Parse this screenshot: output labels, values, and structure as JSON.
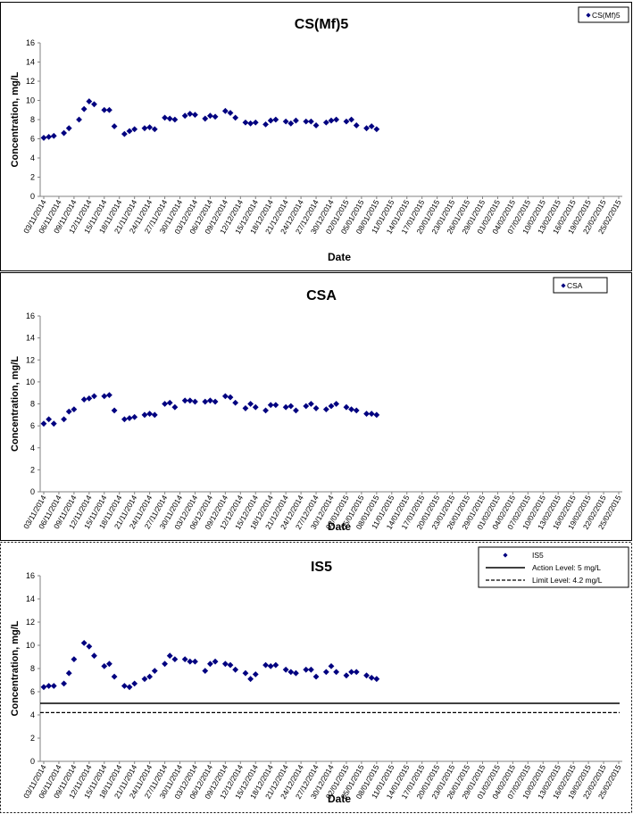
{
  "dates": [
    "03/11/2014",
    "06/11/2014",
    "09/11/2014",
    "12/11/2014",
    "15/11/2014",
    "18/11/2014",
    "21/11/2014",
    "24/11/2014",
    "27/11/2014",
    "30/11/2014",
    "03/12/2014",
    "06/12/2014",
    "09/12/2014",
    "12/12/2014",
    "15/12/2014",
    "18/12/2014",
    "21/12/2014",
    "24/12/2014",
    "27/12/2014",
    "30/12/2014",
    "02/01/2015",
    "05/01/2015",
    "08/01/2015",
    "11/01/2015",
    "14/01/2015",
    "17/01/2015",
    "20/01/2015",
    "23/01/2015",
    "26/01/2015",
    "29/01/2015",
    "01/02/2015",
    "04/02/2015",
    "07/02/2015",
    "10/02/2015",
    "13/02/2015",
    "16/02/2015",
    "19/02/2015",
    "22/02/2015",
    "25/02/2015"
  ],
  "chart_data": [
    {
      "type": "scatter",
      "title": "CS(Mf)5",
      "xlabel": "Date",
      "ylabel": "Concentration, mg/L",
      "ylim": [
        0,
        16
      ],
      "yticks": [
        "0",
        "2",
        "4",
        "6",
        "8",
        "10",
        "12",
        "14",
        "16"
      ],
      "grid": false,
      "legend_position": "top-right",
      "series": [
        {
          "name": "CS(Mf)5",
          "color": "#000080",
          "marker": "diamond",
          "points": [
            [
              "03/11/2014",
              6.1
            ],
            [
              "04/11/2014",
              6.2
            ],
            [
              "05/11/2014",
              6.3
            ],
            [
              "07/11/2014",
              6.6
            ],
            [
              "08/11/2014",
              7.1
            ],
            [
              "10/11/2014",
              8.0
            ],
            [
              "11/11/2014",
              9.1
            ],
            [
              "12/11/2014",
              9.9
            ],
            [
              "13/11/2014",
              9.6
            ],
            [
              "15/11/2014",
              9.0
            ],
            [
              "16/11/2014",
              9.0
            ],
            [
              "17/11/2014",
              7.3
            ],
            [
              "19/11/2014",
              6.5
            ],
            [
              "20/11/2014",
              6.8
            ],
            [
              "21/11/2014",
              7.0
            ],
            [
              "23/11/2014",
              7.1
            ],
            [
              "24/11/2014",
              7.2
            ],
            [
              "25/11/2014",
              7.0
            ],
            [
              "27/11/2014",
              8.2
            ],
            [
              "28/11/2014",
              8.1
            ],
            [
              "29/11/2014",
              8.0
            ],
            [
              "01/12/2014",
              8.4
            ],
            [
              "02/12/2014",
              8.6
            ],
            [
              "03/12/2014",
              8.5
            ],
            [
              "05/12/2014",
              8.1
            ],
            [
              "06/12/2014",
              8.4
            ],
            [
              "07/12/2014",
              8.3
            ],
            [
              "09/12/2014",
              8.9
            ],
            [
              "10/12/2014",
              8.7
            ],
            [
              "11/12/2014",
              8.2
            ],
            [
              "13/12/2014",
              7.7
            ],
            [
              "14/12/2014",
              7.6
            ],
            [
              "15/12/2014",
              7.7
            ],
            [
              "17/12/2014",
              7.5
            ],
            [
              "18/12/2014",
              7.9
            ],
            [
              "19/12/2014",
              8.0
            ],
            [
              "21/12/2014",
              7.8
            ],
            [
              "22/12/2014",
              7.6
            ],
            [
              "23/12/2014",
              7.9
            ],
            [
              "25/12/2014",
              7.8
            ],
            [
              "26/12/2014",
              7.8
            ],
            [
              "27/12/2014",
              7.4
            ],
            [
              "29/12/2014",
              7.7
            ],
            [
              "30/12/2014",
              7.9
            ],
            [
              "31/12/2014",
              8.0
            ],
            [
              "02/01/2015",
              7.8
            ],
            [
              "03/01/2015",
              8.0
            ],
            [
              "04/01/2015",
              7.4
            ],
            [
              "06/01/2015",
              7.1
            ],
            [
              "07/01/2015",
              7.3
            ],
            [
              "08/01/2015",
              7.0
            ]
          ]
        }
      ]
    },
    {
      "type": "scatter",
      "title": "CSA",
      "xlabel": "Date",
      "ylabel": "Concentration, mg/L",
      "ylim": [
        0,
        16
      ],
      "yticks": [
        "0",
        "2",
        "4",
        "6",
        "8",
        "10",
        "12",
        "14",
        "16"
      ],
      "grid": false,
      "legend_position": "top-right",
      "series": [
        {
          "name": "CSA",
          "color": "#000080",
          "marker": "diamond",
          "points": [
            [
              "03/11/2014",
              6.2
            ],
            [
              "04/11/2014",
              6.6
            ],
            [
              "05/11/2014",
              6.2
            ],
            [
              "07/11/2014",
              6.6
            ],
            [
              "08/11/2014",
              7.3
            ],
            [
              "09/11/2014",
              7.5
            ],
            [
              "11/11/2014",
              8.4
            ],
            [
              "12/11/2014",
              8.5
            ],
            [
              "13/11/2014",
              8.7
            ],
            [
              "15/11/2014",
              8.7
            ],
            [
              "16/11/2014",
              8.8
            ],
            [
              "17/11/2014",
              7.4
            ],
            [
              "19/11/2014",
              6.6
            ],
            [
              "20/11/2014",
              6.7
            ],
            [
              "21/11/2014",
              6.8
            ],
            [
              "23/11/2014",
              7.0
            ],
            [
              "24/11/2014",
              7.1
            ],
            [
              "25/11/2014",
              7.0
            ],
            [
              "27/11/2014",
              8.0
            ],
            [
              "28/11/2014",
              8.1
            ],
            [
              "29/11/2014",
              7.7
            ],
            [
              "01/12/2014",
              8.3
            ],
            [
              "02/12/2014",
              8.3
            ],
            [
              "03/12/2014",
              8.2
            ],
            [
              "05/12/2014",
              8.2
            ],
            [
              "06/12/2014",
              8.3
            ],
            [
              "07/12/2014",
              8.2
            ],
            [
              "09/12/2014",
              8.7
            ],
            [
              "10/12/2014",
              8.6
            ],
            [
              "11/12/2014",
              8.1
            ],
            [
              "13/12/2014",
              7.6
            ],
            [
              "14/12/2014",
              8.0
            ],
            [
              "15/12/2014",
              7.7
            ],
            [
              "17/12/2014",
              7.4
            ],
            [
              "18/12/2014",
              7.9
            ],
            [
              "19/12/2014",
              7.9
            ],
            [
              "21/12/2014",
              7.7
            ],
            [
              "22/12/2014",
              7.8
            ],
            [
              "23/12/2014",
              7.4
            ],
            [
              "25/12/2014",
              7.8
            ],
            [
              "26/12/2014",
              8.0
            ],
            [
              "27/12/2014",
              7.6
            ],
            [
              "29/12/2014",
              7.5
            ],
            [
              "30/12/2014",
              7.8
            ],
            [
              "31/12/2014",
              8.0
            ],
            [
              "02/01/2015",
              7.7
            ],
            [
              "03/01/2015",
              7.5
            ],
            [
              "04/01/2015",
              7.4
            ],
            [
              "06/01/2015",
              7.1
            ],
            [
              "07/01/2015",
              7.1
            ],
            [
              "08/01/2015",
              7.0
            ]
          ]
        }
      ]
    },
    {
      "type": "scatter",
      "title": "IS5",
      "xlabel": "Date",
      "ylabel": "Concentration, mg/L",
      "ylim": [
        0,
        16
      ],
      "yticks": [
        "0",
        "2",
        "4",
        "6",
        "8",
        "10",
        "12",
        "14",
        "16"
      ],
      "grid": false,
      "legend_position": "top-right",
      "series": [
        {
          "name": "IS5",
          "color": "#000080",
          "marker": "diamond",
          "points": [
            [
              "03/11/2014",
              6.4
            ],
            [
              "04/11/2014",
              6.5
            ],
            [
              "05/11/2014",
              6.5
            ],
            [
              "07/11/2014",
              6.7
            ],
            [
              "08/11/2014",
              7.6
            ],
            [
              "09/11/2014",
              8.8
            ],
            [
              "11/11/2014",
              10.2
            ],
            [
              "12/11/2014",
              9.9
            ],
            [
              "13/11/2014",
              9.1
            ],
            [
              "15/11/2014",
              8.2
            ],
            [
              "16/11/2014",
              8.4
            ],
            [
              "17/11/2014",
              7.3
            ],
            [
              "19/11/2014",
              6.5
            ],
            [
              "20/11/2014",
              6.4
            ],
            [
              "21/11/2014",
              6.7
            ],
            [
              "23/11/2014",
              7.1
            ],
            [
              "24/11/2014",
              7.3
            ],
            [
              "25/11/2014",
              7.8
            ],
            [
              "27/11/2014",
              8.4
            ],
            [
              "28/11/2014",
              9.1
            ],
            [
              "29/11/2014",
              8.8
            ],
            [
              "01/12/2014",
              8.8
            ],
            [
              "02/12/2014",
              8.6
            ],
            [
              "03/12/2014",
              8.6
            ],
            [
              "05/12/2014",
              7.8
            ],
            [
              "06/12/2014",
              8.4
            ],
            [
              "07/12/2014",
              8.6
            ],
            [
              "09/12/2014",
              8.4
            ],
            [
              "10/12/2014",
              8.3
            ],
            [
              "11/12/2014",
              7.9
            ],
            [
              "13/12/2014",
              7.6
            ],
            [
              "14/12/2014",
              7.1
            ],
            [
              "15/12/2014",
              7.5
            ],
            [
              "17/12/2014",
              8.3
            ],
            [
              "18/12/2014",
              8.2
            ],
            [
              "19/12/2014",
              8.3
            ],
            [
              "21/12/2014",
              7.9
            ],
            [
              "22/12/2014",
              7.7
            ],
            [
              "23/12/2014",
              7.6
            ],
            [
              "25/12/2014",
              7.9
            ],
            [
              "26/12/2014",
              7.9
            ],
            [
              "27/12/2014",
              7.3
            ],
            [
              "29/12/2014",
              7.7
            ],
            [
              "30/12/2014",
              8.2
            ],
            [
              "31/12/2014",
              7.7
            ],
            [
              "02/01/2015",
              7.4
            ],
            [
              "03/01/2015",
              7.7
            ],
            [
              "04/01/2015",
              7.7
            ],
            [
              "06/01/2015",
              7.4
            ],
            [
              "07/01/2015",
              7.2
            ],
            [
              "08/01/2015",
              7.1
            ]
          ]
        },
        {
          "name": "Action Level: 5 mg/L",
          "type": "hline",
          "value": 5,
          "style": "solid",
          "color": "#000000"
        },
        {
          "name": "Limit Level: 4.2 mg/L",
          "type": "hline",
          "value": 4.2,
          "style": "dashed",
          "color": "#000000"
        }
      ]
    }
  ]
}
